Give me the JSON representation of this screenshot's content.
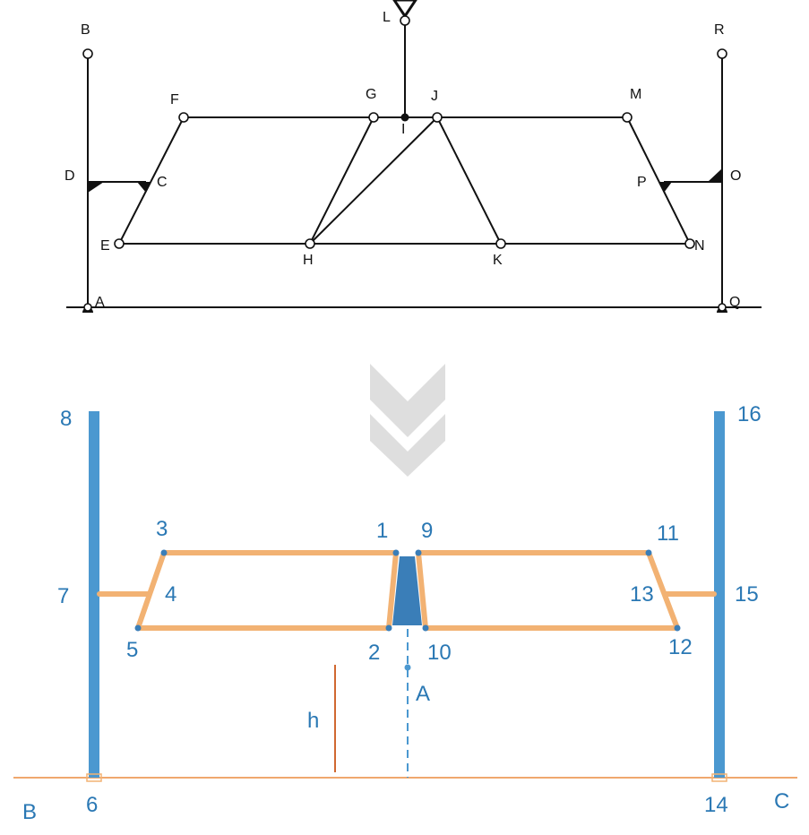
{
  "colors": {
    "line": "#111111",
    "blue": "#4b98d0",
    "label_blue": "#2a78b4",
    "orange": "#f2b273",
    "ground": "#f0a86e",
    "arrow": "#dedede",
    "core": "#3a7eb8",
    "h_line": "#d06830"
  },
  "top_diagram": {
    "labels": {
      "A": "A",
      "B": "B",
      "C": "C",
      "D": "D",
      "E": "E",
      "F": "F",
      "G": "G",
      "H": "H",
      "I": "I",
      "J": "J",
      "K": "K",
      "L": "L",
      "M": "M",
      "N": "N",
      "O": "O",
      "P": "P",
      "Q": "Q",
      "R": "R"
    }
  },
  "bottom_diagram": {
    "numbers": {
      "n1": "1",
      "n2": "2",
      "n3": "3",
      "n4": "4",
      "n5": "5",
      "n6": "6",
      "n7": "7",
      "n8": "8",
      "n9": "9",
      "n10": "10",
      "n11": "11",
      "n12": "12",
      "n13": "13",
      "n14": "14",
      "n15": "15",
      "n16": "16"
    },
    "letters": {
      "A": "A",
      "B": "B",
      "C": "C",
      "h": "h"
    }
  },
  "icons": {
    "transition": "double-chevron-down-icon",
    "support": "triangle-support-icon"
  }
}
